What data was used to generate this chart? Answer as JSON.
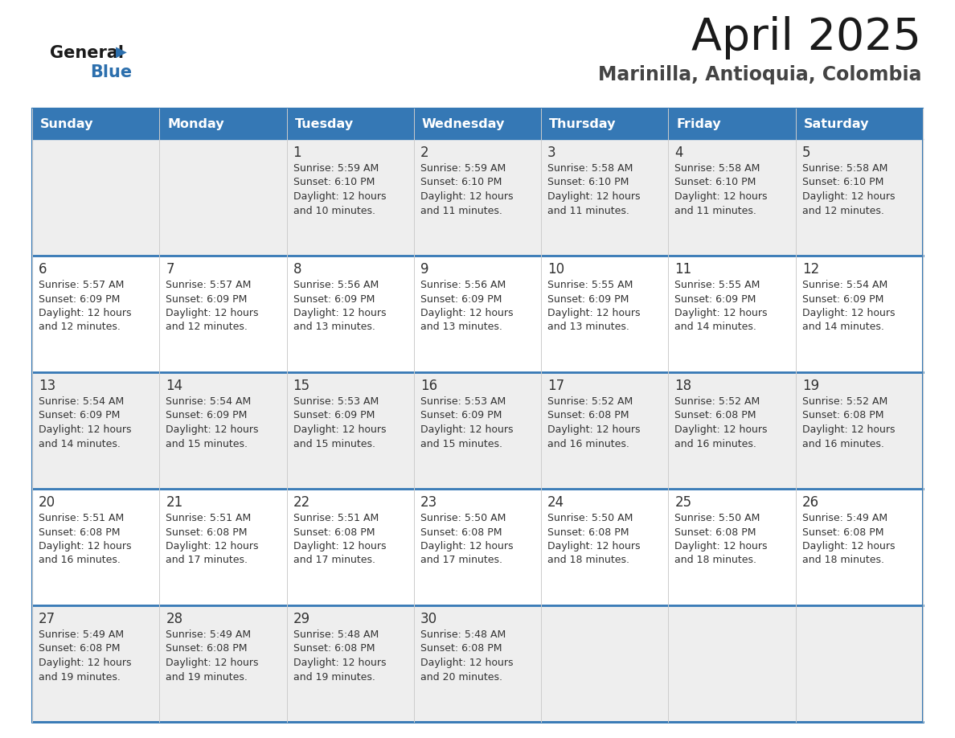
{
  "title": "April 2025",
  "subtitle": "Marinilla, Antioquia, Colombia",
  "header_color": "#3578b5",
  "header_text_color": "#ffffff",
  "day_names": [
    "Sunday",
    "Monday",
    "Tuesday",
    "Wednesday",
    "Thursday",
    "Friday",
    "Saturday"
  ],
  "background_color": "#ffffff",
  "cell_bg_odd": "#eeeeee",
  "cell_bg_even": "#ffffff",
  "row_border_color": "#3578b5",
  "col_border_color": "#cccccc",
  "text_color": "#333333",
  "calendar_data": [
    [
      {
        "day": null,
        "sunrise": null,
        "sunset": null,
        "daylight_h": null,
        "daylight_m": null
      },
      {
        "day": null,
        "sunrise": null,
        "sunset": null,
        "daylight_h": null,
        "daylight_m": null
      },
      {
        "day": 1,
        "sunrise": "5:59 AM",
        "sunset": "6:10 PM",
        "daylight_h": "12 hours",
        "daylight_m": "and 10 minutes."
      },
      {
        "day": 2,
        "sunrise": "5:59 AM",
        "sunset": "6:10 PM",
        "daylight_h": "12 hours",
        "daylight_m": "and 11 minutes."
      },
      {
        "day": 3,
        "sunrise": "5:58 AM",
        "sunset": "6:10 PM",
        "daylight_h": "12 hours",
        "daylight_m": "and 11 minutes."
      },
      {
        "day": 4,
        "sunrise": "5:58 AM",
        "sunset": "6:10 PM",
        "daylight_h": "12 hours",
        "daylight_m": "and 11 minutes."
      },
      {
        "day": 5,
        "sunrise": "5:58 AM",
        "sunset": "6:10 PM",
        "daylight_h": "12 hours",
        "daylight_m": "and 12 minutes."
      }
    ],
    [
      {
        "day": 6,
        "sunrise": "5:57 AM",
        "sunset": "6:09 PM",
        "daylight_h": "12 hours",
        "daylight_m": "and 12 minutes."
      },
      {
        "day": 7,
        "sunrise": "5:57 AM",
        "sunset": "6:09 PM",
        "daylight_h": "12 hours",
        "daylight_m": "and 12 minutes."
      },
      {
        "day": 8,
        "sunrise": "5:56 AM",
        "sunset": "6:09 PM",
        "daylight_h": "12 hours",
        "daylight_m": "and 13 minutes."
      },
      {
        "day": 9,
        "sunrise": "5:56 AM",
        "sunset": "6:09 PM",
        "daylight_h": "12 hours",
        "daylight_m": "and 13 minutes."
      },
      {
        "day": 10,
        "sunrise": "5:55 AM",
        "sunset": "6:09 PM",
        "daylight_h": "12 hours",
        "daylight_m": "and 13 minutes."
      },
      {
        "day": 11,
        "sunrise": "5:55 AM",
        "sunset": "6:09 PM",
        "daylight_h": "12 hours",
        "daylight_m": "and 14 minutes."
      },
      {
        "day": 12,
        "sunrise": "5:54 AM",
        "sunset": "6:09 PM",
        "daylight_h": "12 hours",
        "daylight_m": "and 14 minutes."
      }
    ],
    [
      {
        "day": 13,
        "sunrise": "5:54 AM",
        "sunset": "6:09 PM",
        "daylight_h": "12 hours",
        "daylight_m": "and 14 minutes."
      },
      {
        "day": 14,
        "sunrise": "5:54 AM",
        "sunset": "6:09 PM",
        "daylight_h": "12 hours",
        "daylight_m": "and 15 minutes."
      },
      {
        "day": 15,
        "sunrise": "5:53 AM",
        "sunset": "6:09 PM",
        "daylight_h": "12 hours",
        "daylight_m": "and 15 minutes."
      },
      {
        "day": 16,
        "sunrise": "5:53 AM",
        "sunset": "6:09 PM",
        "daylight_h": "12 hours",
        "daylight_m": "and 15 minutes."
      },
      {
        "day": 17,
        "sunrise": "5:52 AM",
        "sunset": "6:08 PM",
        "daylight_h": "12 hours",
        "daylight_m": "and 16 minutes."
      },
      {
        "day": 18,
        "sunrise": "5:52 AM",
        "sunset": "6:08 PM",
        "daylight_h": "12 hours",
        "daylight_m": "and 16 minutes."
      },
      {
        "day": 19,
        "sunrise": "5:52 AM",
        "sunset": "6:08 PM",
        "daylight_h": "12 hours",
        "daylight_m": "and 16 minutes."
      }
    ],
    [
      {
        "day": 20,
        "sunrise": "5:51 AM",
        "sunset": "6:08 PM",
        "daylight_h": "12 hours",
        "daylight_m": "and 16 minutes."
      },
      {
        "day": 21,
        "sunrise": "5:51 AM",
        "sunset": "6:08 PM",
        "daylight_h": "12 hours",
        "daylight_m": "and 17 minutes."
      },
      {
        "day": 22,
        "sunrise": "5:51 AM",
        "sunset": "6:08 PM",
        "daylight_h": "12 hours",
        "daylight_m": "and 17 minutes."
      },
      {
        "day": 23,
        "sunrise": "5:50 AM",
        "sunset": "6:08 PM",
        "daylight_h": "12 hours",
        "daylight_m": "and 17 minutes."
      },
      {
        "day": 24,
        "sunrise": "5:50 AM",
        "sunset": "6:08 PM",
        "daylight_h": "12 hours",
        "daylight_m": "and 18 minutes."
      },
      {
        "day": 25,
        "sunrise": "5:50 AM",
        "sunset": "6:08 PM",
        "daylight_h": "12 hours",
        "daylight_m": "and 18 minutes."
      },
      {
        "day": 26,
        "sunrise": "5:49 AM",
        "sunset": "6:08 PM",
        "daylight_h": "12 hours",
        "daylight_m": "and 18 minutes."
      }
    ],
    [
      {
        "day": 27,
        "sunrise": "5:49 AM",
        "sunset": "6:08 PM",
        "daylight_h": "12 hours",
        "daylight_m": "and 19 minutes."
      },
      {
        "day": 28,
        "sunrise": "5:49 AM",
        "sunset": "6:08 PM",
        "daylight_h": "12 hours",
        "daylight_m": "and 19 minutes."
      },
      {
        "day": 29,
        "sunrise": "5:48 AM",
        "sunset": "6:08 PM",
        "daylight_h": "12 hours",
        "daylight_m": "and 19 minutes."
      },
      {
        "day": 30,
        "sunrise": "5:48 AM",
        "sunset": "6:08 PM",
        "daylight_h": "12 hours",
        "daylight_m": "and 20 minutes."
      },
      {
        "day": null,
        "sunrise": null,
        "sunset": null,
        "daylight_h": null,
        "daylight_m": null
      },
      {
        "day": null,
        "sunrise": null,
        "sunset": null,
        "daylight_h": null,
        "daylight_m": null
      },
      {
        "day": null,
        "sunrise": null,
        "sunset": null,
        "daylight_h": null,
        "daylight_m": null
      }
    ]
  ]
}
